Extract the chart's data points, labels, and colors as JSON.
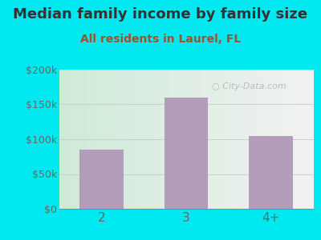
{
  "title": "Median family income by family size",
  "subtitle": "All residents in Laurel, FL",
  "categories": [
    "2",
    "3",
    "4+"
  ],
  "values": [
    85000,
    160000,
    105000
  ],
  "bar_color": "#b39dbb",
  "title_fontsize": 13,
  "subtitle_fontsize": 10,
  "subtitle_color": "#a0522d",
  "title_color": "#333333",
  "ylim": [
    0,
    200000
  ],
  "yticks": [
    0,
    50000,
    100000,
    150000,
    200000
  ],
  "ytick_labels": [
    "$0",
    "$50k",
    "$100k",
    "$150k",
    "$200k"
  ],
  "background_outer": "#00e8f0",
  "watermark": "City-Data.com",
  "watermark_color": "#aaaaaa",
  "grid_color": "#cccccc",
  "tick_color": "#666666",
  "xtick_fontsize": 11,
  "ytick_fontsize": 9
}
